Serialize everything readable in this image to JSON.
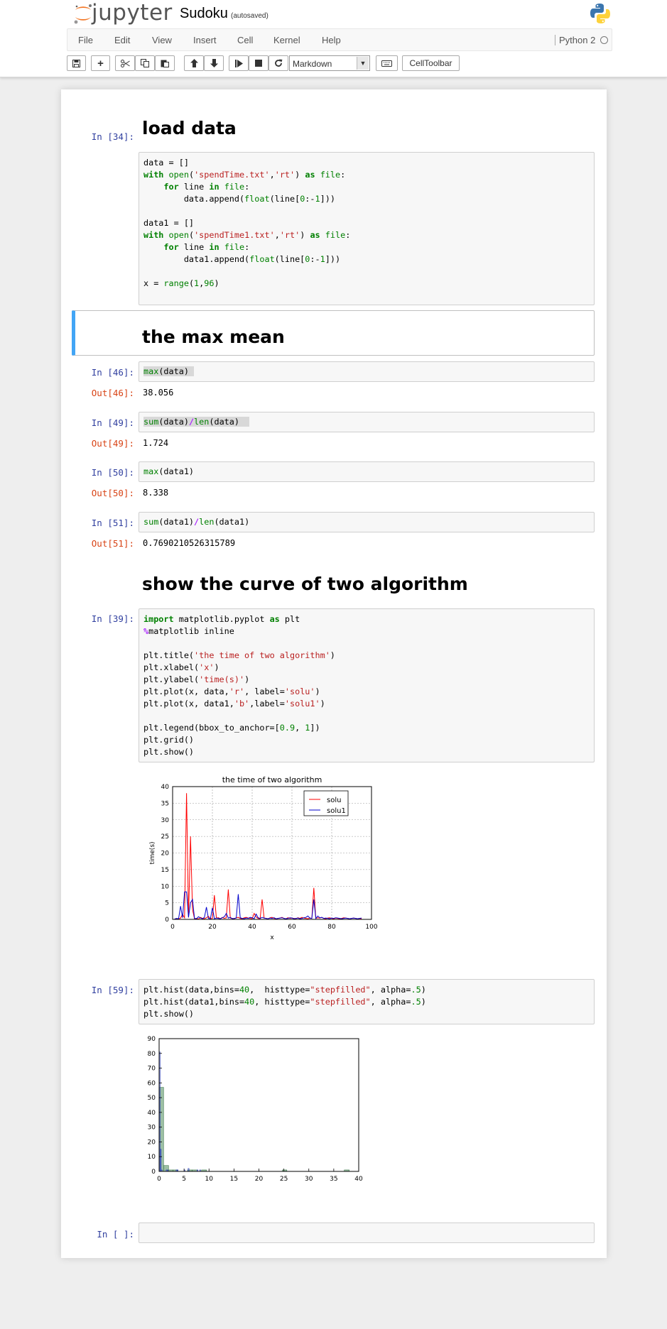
{
  "header": {
    "logo_text": "jupyter",
    "notebook_name": "Sudoku",
    "autosave": "(autosaved)"
  },
  "menu": [
    "File",
    "Edit",
    "View",
    "Insert",
    "Cell",
    "Kernel",
    "Help"
  ],
  "kernel": {
    "name": "Python 2"
  },
  "toolbar": {
    "cell_type": "Markdown",
    "celltoolbar_label": "CellToolbar",
    "icons": [
      "save-icon",
      "plus-icon",
      "scissors-icon",
      "copy-icon",
      "paste-icon",
      "arrow-up-icon",
      "arrow-down-icon",
      "step-forward-icon",
      "stop-icon",
      "refresh-icon",
      "keyboard-icon"
    ]
  },
  "cells": {
    "h_load": "load data",
    "c34_prompt": "In [34]:",
    "h_maxmean": "the max mean",
    "c46_prompt": "In [46]:",
    "c46_code": "max(data)",
    "c46_out_prompt": "Out[46]:",
    "c46_out": "38.056",
    "c49_prompt": "In [49]:",
    "c49_out_prompt": "Out[49]:",
    "c49_out": "1.724",
    "c50_prompt": "In [50]:",
    "c50_out_prompt": "Out[50]:",
    "c50_out": "8.338",
    "c51_prompt": "In [51]:",
    "c51_out_prompt": "Out[51]:",
    "c51_out": "0.7690210526315789",
    "h_curve": "show the curve of two algorithm",
    "c39_prompt": "In [39]:",
    "c59_prompt": "In [59]:",
    "empty_prompt": "In [ ]:"
  },
  "colors": {
    "accent": "#42a5f5",
    "prompt_in": "#303f9f",
    "prompt_out": "#d84315",
    "solu": "#ff0000",
    "solu1": "#0000cc",
    "hist": "#4a5fd6"
  },
  "chart_data": [
    {
      "type": "line",
      "title": "the time of two algorithm",
      "xlabel": "x",
      "ylabel": "time(s)",
      "xlim": [
        0,
        100
      ],
      "ylim": [
        0,
        40
      ],
      "xticks": [
        0,
        20,
        40,
        60,
        80,
        100
      ],
      "yticks": [
        0,
        5,
        10,
        15,
        20,
        25,
        30,
        35,
        40
      ],
      "grid": true,
      "legend": "top-right",
      "series": [
        {
          "name": "solu",
          "color": "#ff0000",
          "values": [
            0.1,
            0.2,
            0.1,
            0.4,
            1.5,
            0.5,
            38,
            0.6,
            25,
            3,
            0.2,
            0.3,
            0.1,
            0.6,
            0.3,
            0.2,
            0.5,
            0.9,
            0.2,
            0.3,
            7.3,
            0.4,
            0.5,
            0.2,
            0.6,
            0.3,
            0.5,
            9,
            0.4,
            0.3,
            0.2,
            0.5,
            0.6,
            0.3,
            0.2,
            0.5,
            0.6,
            0.4,
            0.3,
            0.2,
            1.8,
            0.7,
            0.3,
            0.2,
            6,
            0.4,
            0.3,
            0.2,
            0.5,
            0.6,
            0.3,
            0.2,
            0.3,
            0.4,
            0.6,
            0.3,
            0.2,
            0.5,
            0.3,
            0.4,
            0.3,
            0.2,
            0.5,
            0.3,
            0.6,
            0.4,
            0.3,
            0.2,
            0.4,
            0.3,
            9.5,
            0.3,
            0.5,
            0.4,
            0.6,
            0.3,
            0.2,
            0.4,
            0.5,
            0.3,
            0.2,
            0.4,
            0.3,
            0.2,
            0.3,
            0.5,
            0.4,
            0.3,
            0.2,
            0.3,
            0.4,
            0.3,
            0.2,
            0.3,
            0.2
          ]
        },
        {
          "name": "solu1",
          "color": "#0000cc",
          "values": [
            0.1,
            0.3,
            0.2,
            4,
            0.5,
            8.3,
            8.3,
            0.6,
            5,
            6,
            0.3,
            0.2,
            0.8,
            0.4,
            0.2,
            0.6,
            3.7,
            0.3,
            0.2,
            3.5,
            0.2,
            0.4,
            0.3,
            0.2,
            0.5,
            0.8,
            1.8,
            0.4,
            0.6,
            0.2,
            0.3,
            0.4,
            7.6,
            0.5,
            0.3,
            0.2,
            0.4,
            0.3,
            0.6,
            0.5,
            0.2,
            1.6,
            0.5,
            0.3,
            0.6,
            0.4,
            0.3,
            0.2,
            0.4,
            0.3,
            0.5,
            0.2,
            0.3,
            0.4,
            0.5,
            0.3,
            0.2,
            0.3,
            0.5,
            0.4,
            0.2,
            0.3,
            0.4,
            0.2,
            0.3,
            0.5,
            0.6,
            1,
            0.4,
            0.3,
            6,
            0.3,
            1,
            0.5,
            0.6,
            0.3,
            0.4,
            0.3,
            0.2,
            0.4,
            0.3,
            0.5,
            0.4,
            0.3,
            0.2,
            0.3,
            0.4,
            0.3,
            0.2,
            0.3,
            0.4,
            0.3,
            0.2,
            0.3,
            0.4
          ]
        }
      ]
    },
    {
      "type": "bar",
      "subtype": "histogram",
      "xlim": [
        0,
        40
      ],
      "ylim": [
        0,
        90
      ],
      "xticks": [
        0,
        5,
        10,
        15,
        20,
        25,
        30,
        35,
        40
      ],
      "yticks": [
        0,
        10,
        20,
        30,
        40,
        50,
        60,
        70,
        80,
        90
      ],
      "grid": false,
      "series": [
        {
          "name": "data",
          "bins": [
            [
              0,
              0.9,
              57
            ],
            [
              0.9,
              1.9,
              4
            ],
            [
              1.9,
              2.8,
              1
            ],
            [
              2.8,
              3.8,
              1
            ],
            [
              5.7,
              6.6,
              1
            ],
            [
              6.6,
              7.6,
              1
            ],
            [
              8.5,
              9.5,
              1
            ],
            [
              9.5,
              10.4,
              0
            ],
            [
              24.7,
              25.6,
              1
            ],
            [
              37.1,
              38.1,
              1
            ]
          ]
        },
        {
          "name": "data1",
          "bins": [
            [
              0,
              0.21,
              81
            ],
            [
              0.21,
              0.42,
              15
            ],
            [
              0.42,
              0.63,
              1
            ],
            [
              1.4,
              1.62,
              1
            ],
            [
              1.6,
              1.8,
              1
            ],
            [
              3.4,
              3.6,
              1
            ],
            [
              3.6,
              3.8,
              1
            ],
            [
              5.0,
              5.2,
              1
            ],
            [
              5.8,
              6.0,
              2
            ],
            [
              7.6,
              7.8,
              1
            ],
            [
              8.1,
              8.34,
              1
            ]
          ]
        }
      ]
    }
  ]
}
